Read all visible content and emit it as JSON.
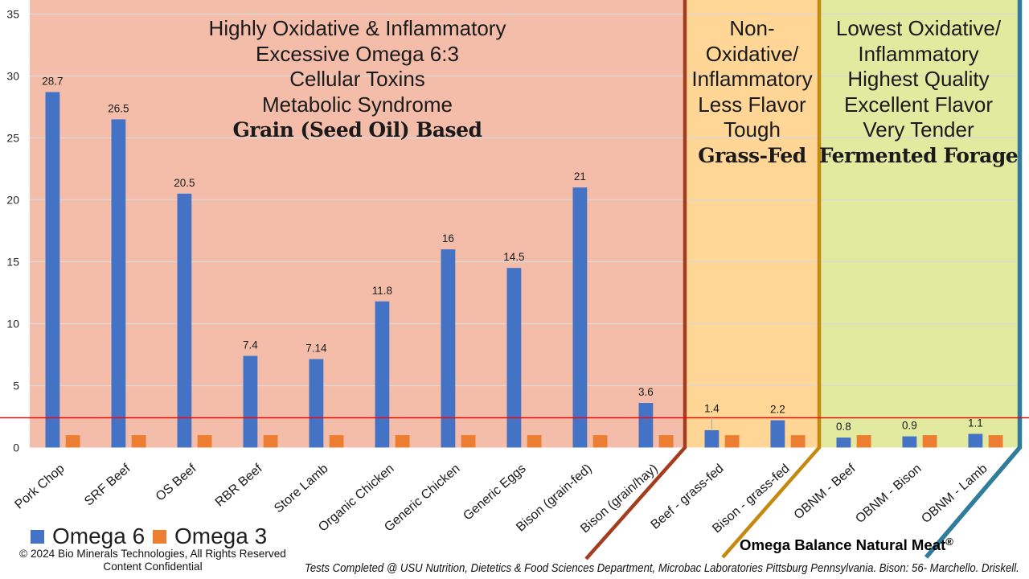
{
  "chart_data": {
    "type": "bar",
    "categories": [
      "Pork Chop",
      "SRF Beef",
      "OS Beef",
      "RBR Beef",
      "Store Lamb",
      "Organic Chicken",
      "Generic Chicken",
      "Generic Eggs",
      "Bison (grain-fed)",
      "Bison (grain/hay)",
      "Beef - grass-fed",
      "Bison - grass-fed",
      "OBNM - Beef",
      "OBNM - Bison",
      "OBNM - Lamb"
    ],
    "series": [
      {
        "name": "Omega 6",
        "color": "#4472C4",
        "values": [
          28.7,
          26.5,
          20.5,
          7.4,
          7.14,
          11.8,
          16,
          14.5,
          21,
          3.6,
          1.4,
          2.2,
          0.8,
          0.9,
          1.1
        ]
      },
      {
        "name": "Omega 3",
        "color": "#ED7D31",
        "values": [
          1,
          1,
          1,
          1,
          1,
          1,
          1,
          1,
          1,
          1,
          1,
          1,
          1,
          1,
          1
        ]
      }
    ],
    "data_labels": [
      "28.7",
      "26.5",
      "20.5",
      "7.4",
      "7.14",
      "11.8",
      "16",
      "14.5",
      "21",
      "3.6",
      "1.4",
      "2.2",
      "0.8",
      "0.9",
      "1.1"
    ],
    "label_with_leader_line": "1.4",
    "ylim": [
      0,
      36
    ],
    "yticks": [
      "0",
      "5",
      "10",
      "15",
      "20",
      "25",
      "30",
      "35"
    ],
    "grid": true,
    "grid_color": "#D9D9D9",
    "threshold_line": {
      "value": 2.4,
      "color": "#FF0000"
    },
    "regions": [
      {
        "lines": [
          "Highly Oxidative & Inflammatory",
          "Excessive Omega 6:3",
          "Cellular Toxins",
          "Metabolic Syndrome"
        ],
        "bold_line": "Grain (Seed Oil) Based",
        "categories_span": [
          "Pork Chop",
          "Bison (grain/hay)"
        ],
        "bg_color": "#F4BDA9",
        "border_color": "#A43C20"
      },
      {
        "lines": [
          "Non-",
          "Oxidative/",
          "Inflammatory",
          "Less Flavor",
          "Tough"
        ],
        "bold_line": "Grass-Fed",
        "categories_span": [
          "Beef - grass-fed",
          "Bison - grass-fed"
        ],
        "bg_color": "#FFD696",
        "border_color": "#C5890F"
      },
      {
        "lines": [
          "Lowest Oxidative/",
          "Inflammatory",
          "Highest Quality",
          "Excellent Flavor",
          "Very Tender"
        ],
        "bold_line": "Fermented Forage",
        "categories_span": [
          "OBNM - Beef",
          "OBNM - Lamb"
        ],
        "bg_color": "#E1EA9F",
        "border_color": "#2F7C9B"
      }
    ],
    "legend": [
      "Omega 6",
      "Omega 3"
    ],
    "legend_position": "bottom-left"
  },
  "footer": {
    "copyright_line1": "© 2024 Bio Minerals Technologies, All Rights Reserved",
    "copyright_line2": "Content Confidential",
    "tests_note": "Tests Completed @ USU Nutrition, Dietetics & Food Sciences Department, Microbac Laboratories Pittsburg Pennsylvania. Bison: 56- Marchello. Driskell.",
    "brand": "Omega Balance Natural Meat®"
  }
}
